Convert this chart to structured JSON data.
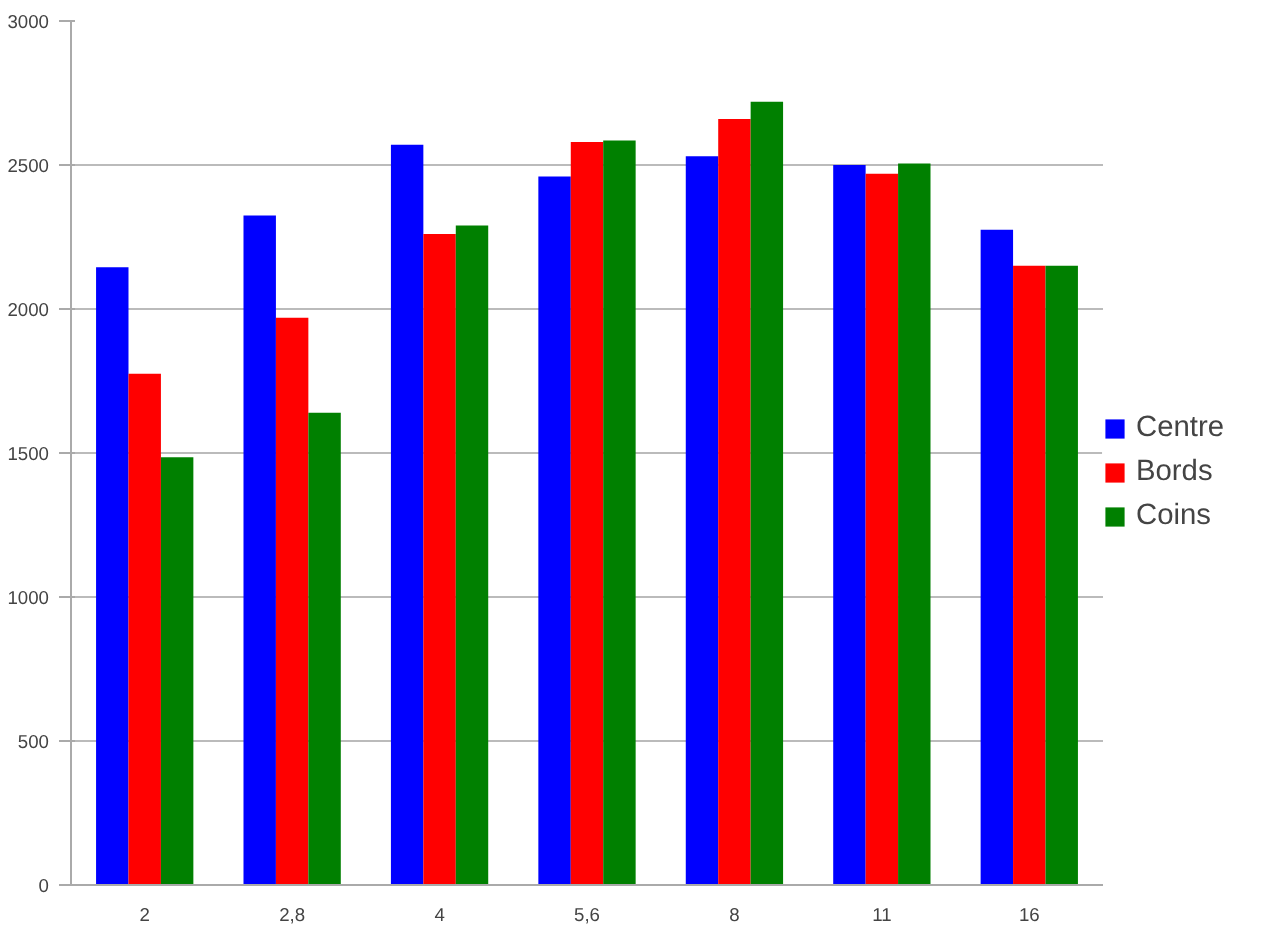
{
  "chart_data": {
    "type": "bar",
    "categories": [
      "2",
      "2,8",
      "4",
      "5,6",
      "8",
      "11",
      "16"
    ],
    "series": [
      {
        "name": "Centre",
        "color": "#0000ff",
        "values": [
          2145,
          2325,
          2570,
          2460,
          2530,
          2500,
          2275
        ]
      },
      {
        "name": "Bords",
        "color": "#ff0000",
        "values": [
          1775,
          1970,
          2260,
          2580,
          2660,
          2470,
          2150
        ]
      },
      {
        "name": "Coins",
        "color": "#008000",
        "values": [
          1485,
          1640,
          2290,
          2585,
          2720,
          2505,
          2150
        ]
      }
    ],
    "ylim": [
      0,
      3000
    ],
    "yticks": [
      0,
      500,
      1000,
      1500,
      2000,
      2500,
      3000
    ],
    "grid": "y",
    "legend": "right"
  }
}
